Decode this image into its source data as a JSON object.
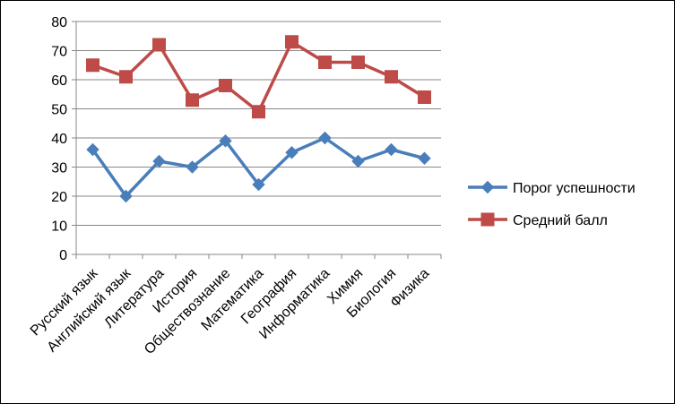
{
  "chart_data": {
    "type": "line",
    "title": "",
    "xlabel": "",
    "ylabel": "",
    "ylim": [
      0,
      80
    ],
    "yticks": [
      0,
      10,
      20,
      30,
      40,
      50,
      60,
      70,
      80
    ],
    "grid": "horizontal",
    "legend_position": "right",
    "categories": [
      "Русский язык",
      "Английский язык",
      "Литература",
      "История",
      "Обществознание",
      "Математика",
      "География",
      "Информатика",
      "Химия",
      "Биология",
      "Физика"
    ],
    "series": [
      {
        "name": "Порог успешности",
        "color": "#4A7EBB",
        "marker": "diamond",
        "values": [
          36,
          20,
          32,
          30,
          39,
          24,
          35,
          40,
          32,
          36,
          33
        ]
      },
      {
        "name": "Средний балл",
        "color": "#BE4B48",
        "marker": "square",
        "values": [
          65,
          61,
          72,
          53,
          58,
          49,
          73,
          66,
          66,
          61,
          54
        ]
      }
    ]
  }
}
